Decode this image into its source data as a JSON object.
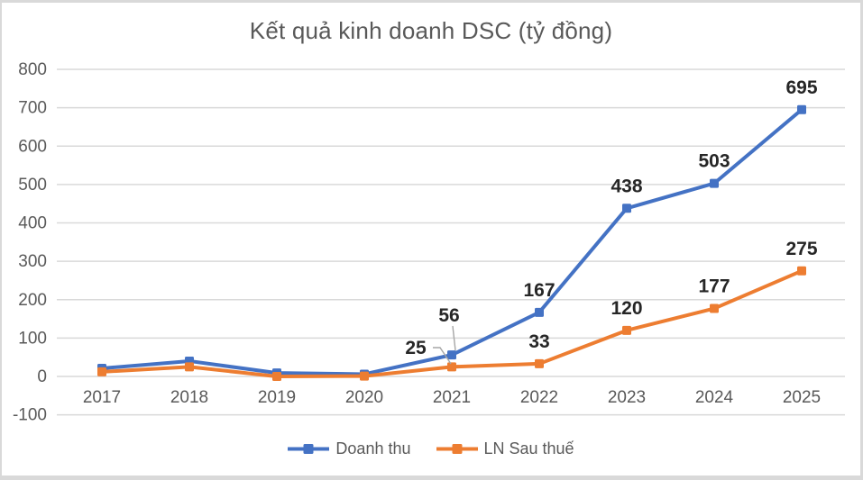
{
  "chart": {
    "title": "Kết quả kinh doanh DSC (tỷ đồng)"
  },
  "legend": {
    "items": [
      {
        "label": "Doanh thu",
        "color": "#4472C4"
      },
      {
        "label": "LN Sau thuế",
        "color": "#ED7D31"
      }
    ]
  },
  "chart_data": {
    "type": "line",
    "title": "Kết quả kinh doanh DSC (tỷ đồng)",
    "categories": [
      "2017",
      "2018",
      "2019",
      "2020",
      "2021",
      "2022",
      "2023",
      "2024",
      "2025"
    ],
    "series": [
      {
        "name": "Doanh thu",
        "color": "#4472C4",
        "marker": "square",
        "values": [
          21,
          40,
          9,
          6,
          56,
          167,
          438,
          503,
          695
        ],
        "data_labels": [
          null,
          null,
          null,
          null,
          "56",
          "167",
          "438",
          "503",
          "695"
        ]
      },
      {
        "name": "LN Sau thuế",
        "color": "#ED7D31",
        "marker": "square",
        "values": [
          12,
          25,
          0,
          1,
          25,
          33,
          120,
          177,
          275
        ],
        "data_labels": [
          null,
          null,
          null,
          null,
          "25",
          "33",
          "120",
          "177",
          "275"
        ]
      }
    ],
    "xlabel": "",
    "ylabel": "",
    "ylim": [
      -100,
      800
    ],
    "ytick_step": 100,
    "yticks": [
      800,
      700,
      600,
      500,
      400,
      300,
      200,
      100,
      0,
      -100
    ],
    "grid": true,
    "legend_position": "bottom"
  },
  "colors": {
    "axis_text": "#595959",
    "title_text": "#595959",
    "data_label": "#262626",
    "gridline": "#D9D9D9",
    "leader_line": "#A6A6A6",
    "background": "#FFFFFF",
    "frame": "#D9D9D9"
  }
}
